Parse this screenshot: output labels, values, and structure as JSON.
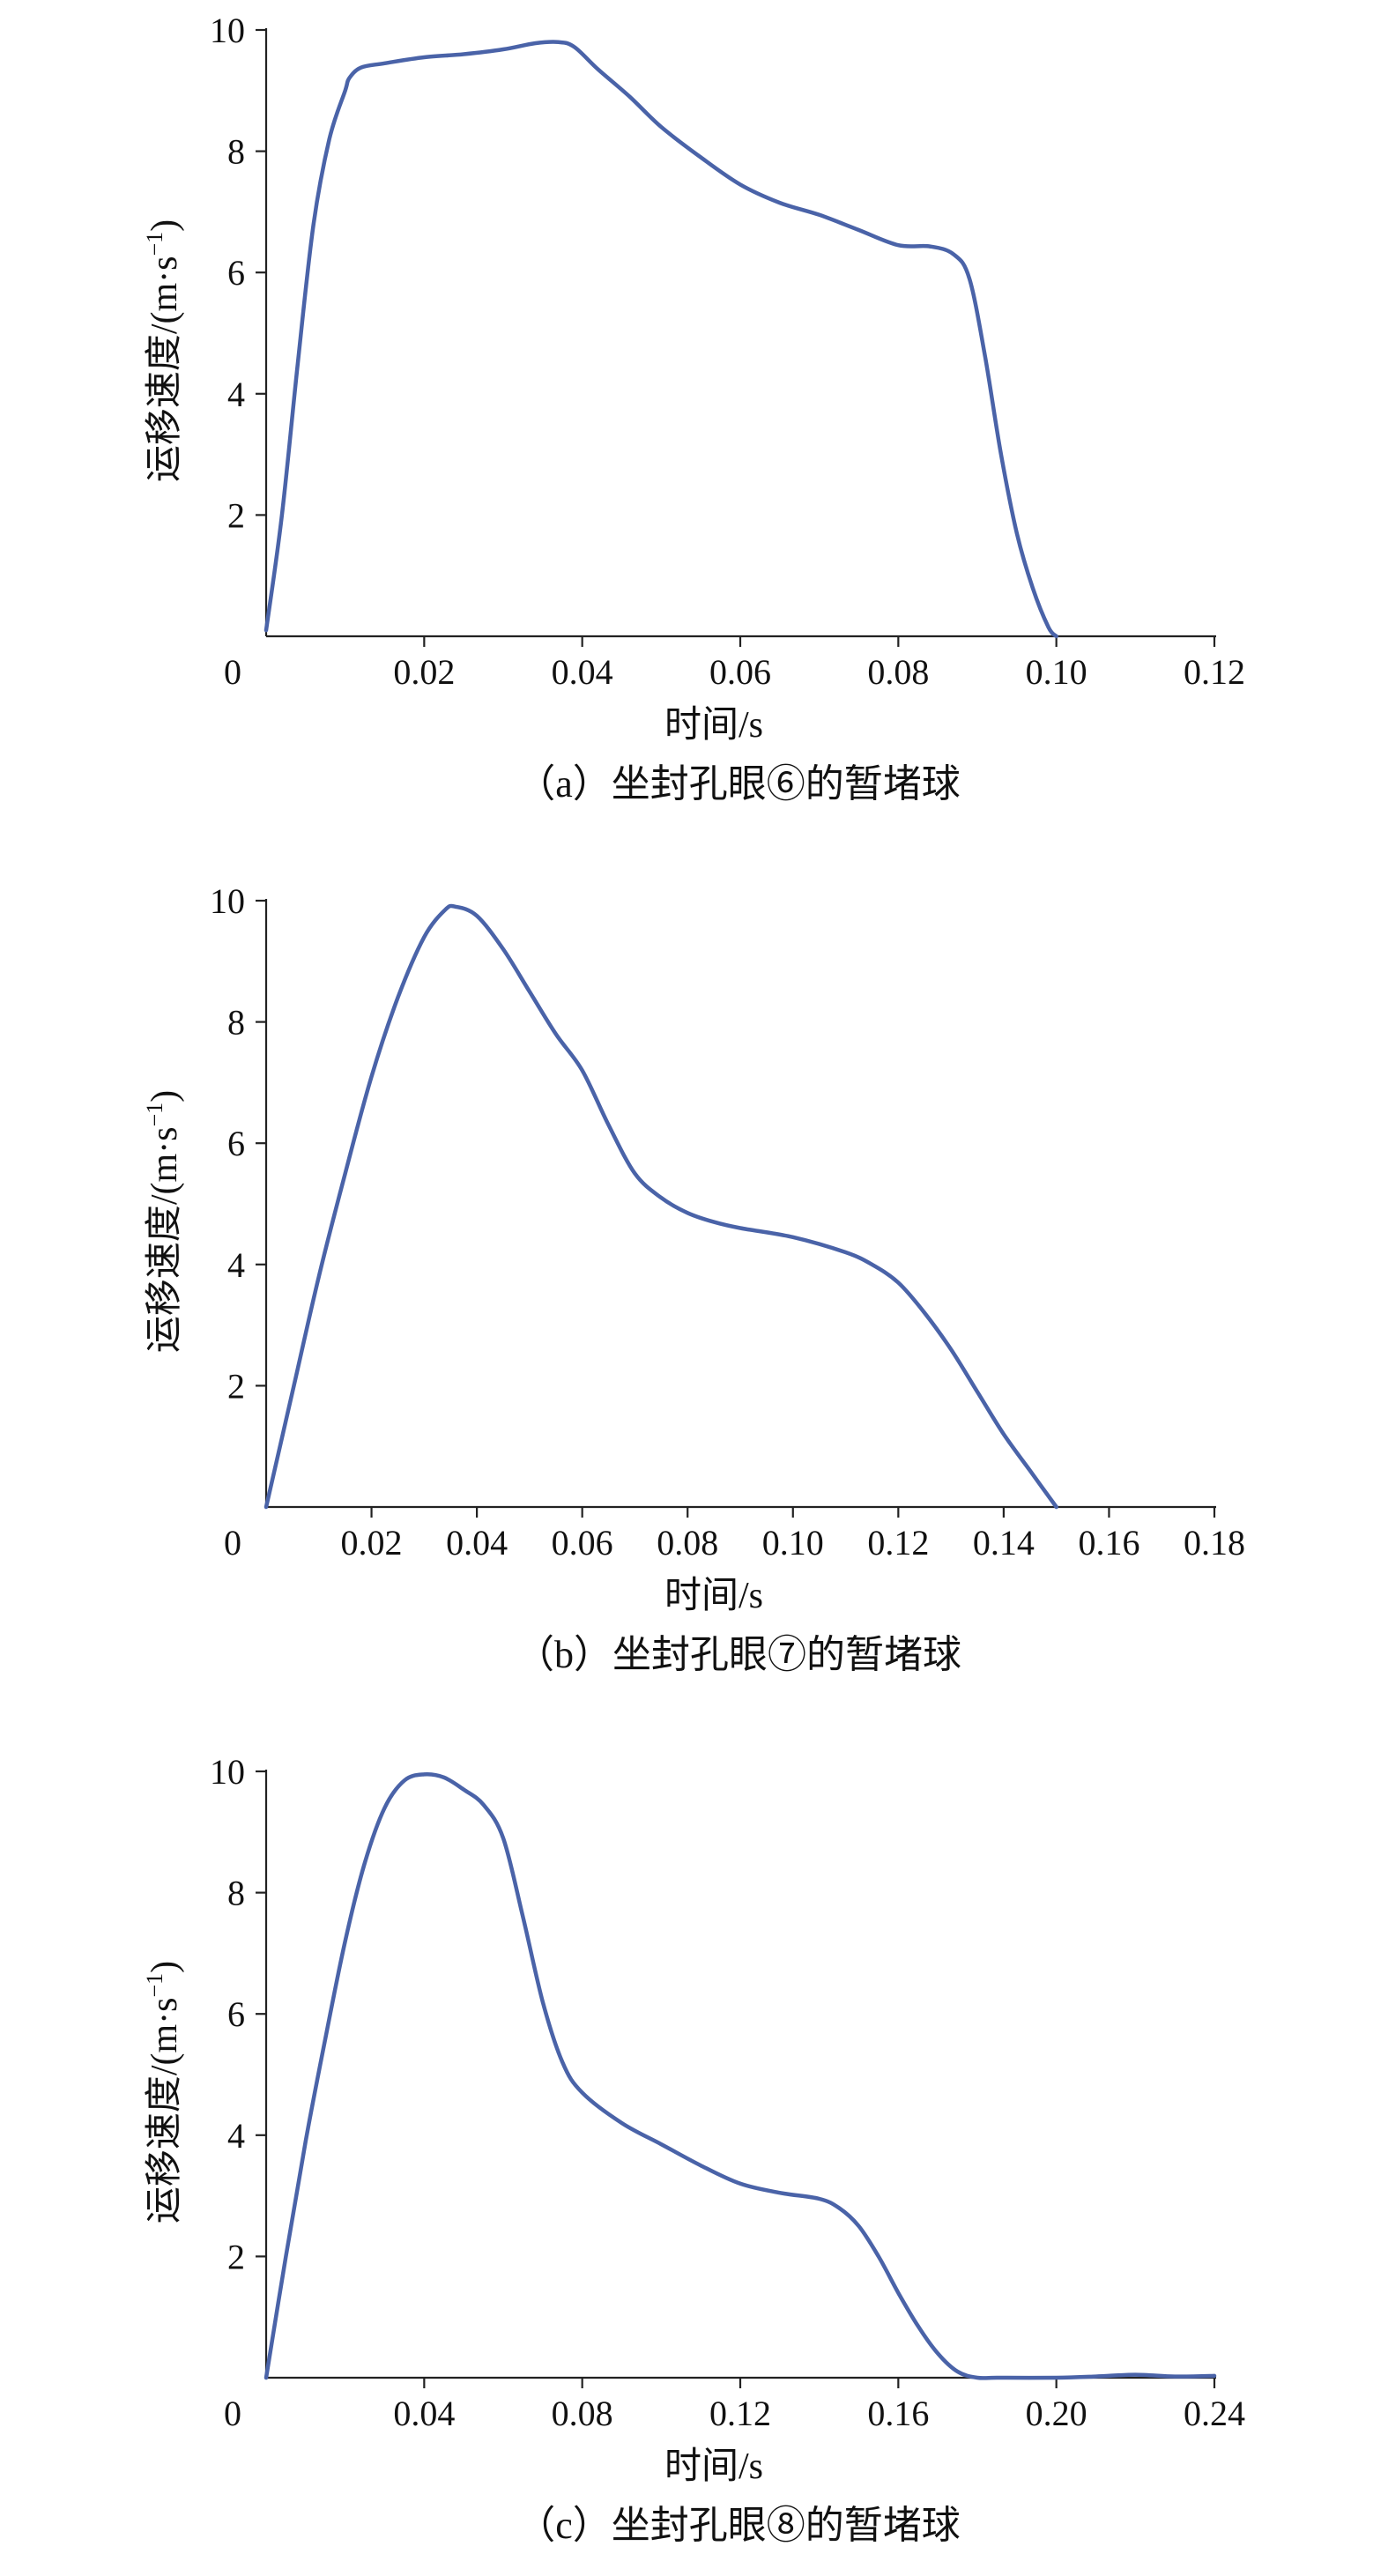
{
  "chart_data": [
    {
      "type": "line",
      "caption": "（a）坐封孔眼⑥的暂堵球",
      "xlabel": "时间/s",
      "ylabel": "运移速度/(m·s",
      "ylabel_sup": "−1",
      "ylabel_close": ")",
      "origin_label": "0",
      "xlim": [
        0,
        0.12
      ],
      "ylim": [
        0,
        10
      ],
      "xticks": [
        0.02,
        0.04,
        0.06,
        0.08,
        0.1,
        0.12
      ],
      "xtick_labels": [
        "0.02",
        "0.04",
        "0.06",
        "0.08",
        "0.10",
        "0.12"
      ],
      "yticks": [
        2,
        4,
        6,
        8,
        10
      ],
      "ytick_labels": [
        "2",
        "4",
        "6",
        "8",
        "10"
      ],
      "grid": false,
      "color": "#4a63a8",
      "series": [
        {
          "x": [
            0.0,
            0.002,
            0.004,
            0.006,
            0.008,
            0.01,
            0.0105,
            0.012,
            0.015,
            0.02,
            0.025,
            0.03,
            0.034,
            0.037,
            0.039,
            0.042,
            0.046,
            0.05,
            0.055,
            0.06,
            0.065,
            0.07,
            0.075,
            0.08,
            0.084,
            0.087,
            0.089,
            0.091,
            0.093,
            0.095,
            0.097,
            0.099,
            0.1
          ],
          "y": [
            0.1,
            2.0,
            4.5,
            6.8,
            8.2,
            9.0,
            9.2,
            9.38,
            9.45,
            9.55,
            9.6,
            9.68,
            9.78,
            9.8,
            9.72,
            9.35,
            8.9,
            8.4,
            7.9,
            7.45,
            7.15,
            6.95,
            6.7,
            6.45,
            6.43,
            6.3,
            5.9,
            4.6,
            3.0,
            1.7,
            0.8,
            0.15,
            0.0
          ]
        }
      ]
    },
    {
      "type": "line",
      "caption": "（b）坐封孔眼⑦的暂堵球",
      "xlabel": "时间/s",
      "ylabel": "运移速度/(m·s",
      "ylabel_sup": "−1",
      "ylabel_close": ")",
      "origin_label": "0",
      "xlim": [
        0,
        0.18
      ],
      "ylim": [
        0,
        10
      ],
      "xticks": [
        0.02,
        0.04,
        0.06,
        0.08,
        0.1,
        0.12,
        0.14,
        0.16,
        0.18
      ],
      "xtick_labels": [
        "0.02",
        "0.04",
        "0.06",
        "0.08",
        "0.10",
        "0.12",
        "0.14",
        "0.16",
        "0.18"
      ],
      "yticks": [
        2,
        4,
        6,
        8,
        10
      ],
      "ytick_labels": [
        "2",
        "4",
        "6",
        "8",
        "10"
      ],
      "grid": false,
      "color": "#4a63a8",
      "series": [
        {
          "x": [
            0.0,
            0.005,
            0.01,
            0.015,
            0.02,
            0.025,
            0.03,
            0.034,
            0.036,
            0.04,
            0.045,
            0.05,
            0.055,
            0.06,
            0.065,
            0.07,
            0.075,
            0.08,
            0.085,
            0.09,
            0.1,
            0.11,
            0.115,
            0.12,
            0.125,
            0.13,
            0.135,
            0.14,
            0.145,
            0.15
          ],
          "y": [
            0.0,
            1.9,
            3.8,
            5.5,
            7.1,
            8.4,
            9.4,
            9.85,
            9.9,
            9.75,
            9.2,
            8.5,
            7.8,
            7.2,
            6.3,
            5.5,
            5.1,
            4.85,
            4.7,
            4.6,
            4.45,
            4.2,
            4.0,
            3.7,
            3.2,
            2.6,
            1.9,
            1.2,
            0.6,
            0.0
          ]
        }
      ]
    },
    {
      "type": "line",
      "caption": "（c）坐封孔眼⑧的暂堵球",
      "xlabel": "时间/s",
      "ylabel": "运移速度/(m·s",
      "ylabel_sup": "−1",
      "ylabel_close": ")",
      "origin_label": "0",
      "xlim": [
        0,
        0.24
      ],
      "ylim": [
        0,
        10
      ],
      "xticks": [
        0.04,
        0.08,
        0.12,
        0.16,
        0.2,
        0.24
      ],
      "xtick_labels": [
        "0.04",
        "0.08",
        "0.12",
        "0.16",
        "0.20",
        "0.24"
      ],
      "yticks": [
        2,
        4,
        6,
        8,
        10
      ],
      "ytick_labels": [
        "2",
        "4",
        "6",
        "8",
        "10"
      ],
      "grid": false,
      "color": "#4a63a8",
      "series": [
        {
          "x": [
            0.0,
            0.005,
            0.01,
            0.015,
            0.02,
            0.025,
            0.03,
            0.035,
            0.04,
            0.045,
            0.05,
            0.055,
            0.06,
            0.065,
            0.07,
            0.075,
            0.08,
            0.09,
            0.1,
            0.11,
            0.12,
            0.13,
            0.14,
            0.145,
            0.15,
            0.155,
            0.16,
            0.165,
            0.17,
            0.175,
            0.18,
            0.185,
            0.2,
            0.21,
            0.22,
            0.23,
            0.24
          ],
          "y": [
            0.0,
            2.0,
            3.9,
            5.6,
            7.2,
            8.5,
            9.4,
            9.85,
            9.95,
            9.9,
            9.7,
            9.45,
            8.9,
            7.6,
            6.2,
            5.2,
            4.7,
            4.2,
            3.85,
            3.5,
            3.2,
            3.05,
            2.95,
            2.8,
            2.5,
            2.0,
            1.4,
            0.85,
            0.4,
            0.1,
            0.0,
            0.0,
            0.0,
            0.02,
            0.05,
            0.02,
            0.03
          ]
        }
      ]
    }
  ]
}
